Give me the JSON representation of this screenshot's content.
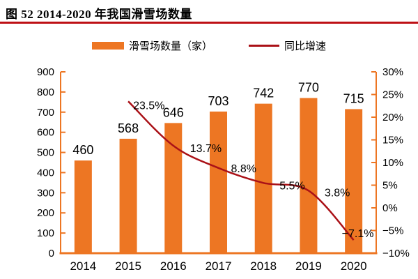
{
  "page": {
    "title": "图  52 2014-2020 年我国滑雪场数量"
  },
  "legend": {
    "bars": "滑雪场数量（家）",
    "line": "同比增速"
  },
  "colors": {
    "bar": "#ED7623",
    "line": "#AA1117",
    "axis": "#ED7623",
    "underline": "#BE1015",
    "text": "#000000"
  },
  "chart_data": {
    "type": "bar+line combo",
    "title": "图 52 2014-2020 年我国滑雪场数量",
    "categories": [
      "2014",
      "2015",
      "2016",
      "2017",
      "2018",
      "2019",
      "2020"
    ],
    "series": [
      {
        "name": "滑雪场数量（家）",
        "type": "bar",
        "axis": "left",
        "values": [
          460,
          568,
          646,
          703,
          742,
          770,
          715
        ],
        "labels": [
          "460",
          "568",
          "646",
          "703",
          "742",
          "770",
          "715"
        ]
      },
      {
        "name": "同比增速",
        "type": "line",
        "axis": "right",
        "values": [
          null,
          23.5,
          13.7,
          8.8,
          5.5,
          3.8,
          -7.1
        ],
        "labels": [
          "23.5%",
          "13.7%",
          "8.8%",
          "5.5%",
          "3.8%",
          "−7.1%"
        ]
      }
    ],
    "left_axis": {
      "min": 0,
      "max": 900,
      "step": 100,
      "ticks": [
        "900",
        "800",
        "700",
        "600",
        "500",
        "400",
        "300",
        "200",
        "100",
        "0"
      ]
    },
    "right_axis": {
      "min": -10,
      "max": 30,
      "step": 5,
      "ticks": [
        "30%",
        "25%",
        "20%",
        "15%",
        "10%",
        "5%",
        "0%",
        "−5%",
        "−10%"
      ]
    },
    "grid": false,
    "legend_position": "top"
  }
}
